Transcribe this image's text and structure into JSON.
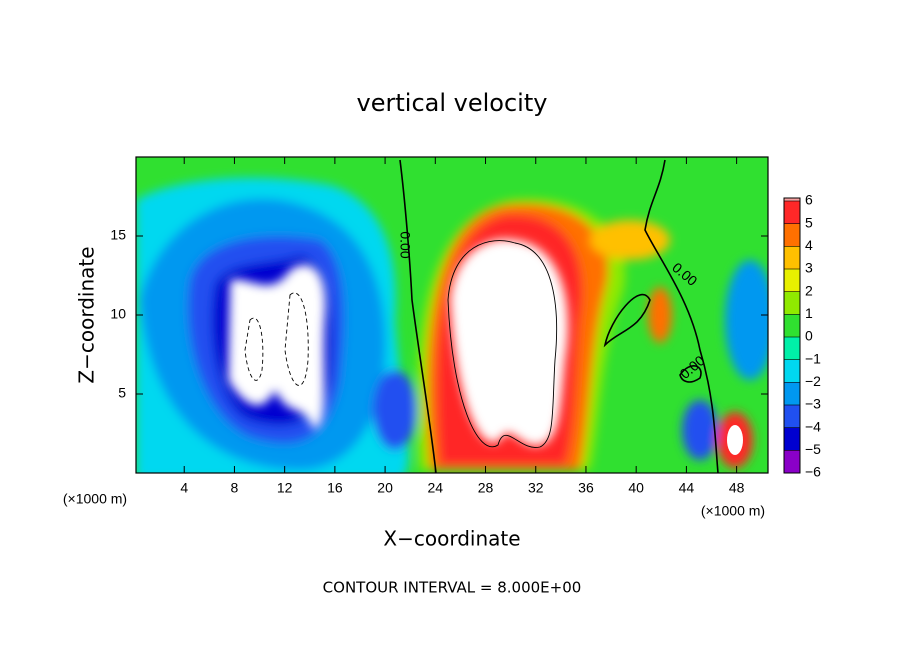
{
  "chart_data": {
    "type": "contour",
    "title": "vertical velocity",
    "xlabel": "X−coordinate",
    "ylabel": "Z−coordinate",
    "x_unit": "(×1000 m)",
    "x_unit_right": "(×1000 m)",
    "footer": "CONTOUR INTERVAL = 8.000E+00",
    "xlim": [
      0,
      50.5
    ],
    "ylim": [
      0,
      20
    ],
    "xticks": [
      4,
      8,
      12,
      16,
      20,
      24,
      28,
      32,
      36,
      40,
      44,
      48
    ],
    "yticks": [
      5,
      10,
      15
    ],
    "contour_labels": [
      "0.00",
      "0.00",
      "0.00"
    ],
    "colorbar": {
      "ticks": [
        {
          "value": -6,
          "label": "−6"
        },
        {
          "value": -5,
          "label": "−5"
        },
        {
          "value": -4,
          "label": "−4"
        },
        {
          "value": -3,
          "label": "−3"
        },
        {
          "value": -2,
          "label": "−2"
        },
        {
          "value": -1,
          "label": "−1"
        },
        0,
        1,
        2,
        3,
        4,
        5,
        6
      ],
      "colors": [
        "#8a00c8",
        "#0000d0",
        "#2050f0",
        "#0098f0",
        "#00d8f0",
        "#00f0a8",
        "#30e030",
        "#90ea00",
        "#e8f000",
        "#ffc000",
        "#ff7000",
        "#ff2828"
      ],
      "top_color": "#f7a0a0"
    }
  }
}
